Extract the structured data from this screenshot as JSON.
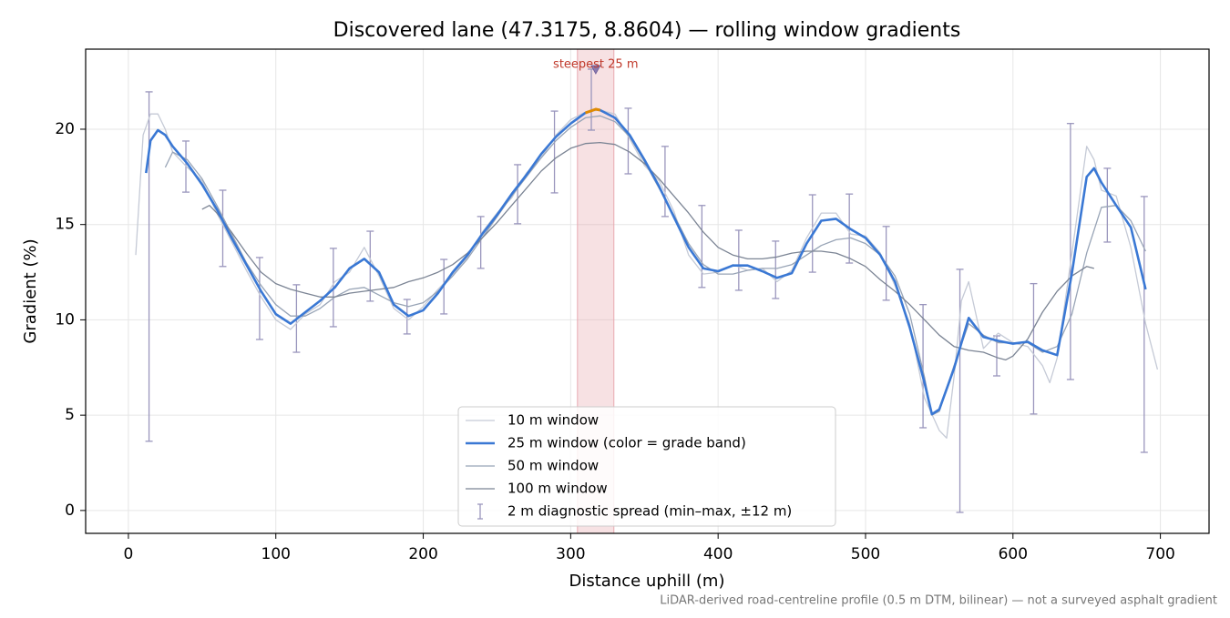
{
  "chart_data": {
    "type": "line",
    "title": "Discovered lane (47.3175, 8.8604) — rolling window gradients",
    "xlabel": "Distance uphill (m)",
    "ylabel": "Gradient (%)",
    "footnote": "LiDAR-derived road-centreline profile (0.5 m DTM, bilinear) — not a surveyed asphalt gradient",
    "xlim": [
      -29,
      733
    ],
    "ylim": [
      -1.2,
      24.2
    ],
    "xticks": [
      0,
      100,
      200,
      300,
      400,
      500,
      600,
      700
    ],
    "yticks": [
      0,
      5,
      10,
      15,
      20
    ],
    "grid": true,
    "legend": "lower center",
    "series": [
      {
        "name": "10 m window",
        "color": "#c5cad6",
        "width": 1.3,
        "x": [
          5,
          10,
          15,
          20,
          25,
          30,
          40,
          50,
          60,
          70,
          80,
          90,
          100,
          110,
          120,
          130,
          140,
          150,
          160,
          170,
          180,
          190,
          200,
          210,
          220,
          230,
          240,
          250,
          260,
          270,
          280,
          290,
          300,
          310,
          320,
          330,
          340,
          350,
          360,
          370,
          380,
          390,
          400,
          410,
          420,
          430,
          440,
          450,
          460,
          470,
          480,
          490,
          500,
          510,
          520,
          530,
          540,
          550,
          555,
          560,
          565,
          570,
          580,
          590,
          600,
          610,
          620,
          625,
          630,
          640,
          650,
          655,
          660,
          670,
          680,
          690,
          698
        ],
        "values": [
          13.4,
          19.7,
          20.8,
          20.8,
          20.0,
          18.8,
          18.0,
          17.3,
          15.6,
          14.1,
          12.6,
          11.2,
          10.0,
          9.5,
          10.3,
          10.8,
          12.0,
          12.5,
          13.8,
          12.3,
          10.6,
          10.0,
          10.7,
          11.6,
          12.4,
          13.3,
          14.6,
          15.6,
          16.4,
          17.7,
          18.5,
          19.7,
          20.5,
          20.9,
          21.0,
          20.8,
          19.5,
          18.1,
          17.3,
          15.7,
          13.4,
          12.4,
          12.5,
          12.9,
          12.6,
          12.7,
          12.0,
          12.6,
          14.3,
          15.6,
          15.6,
          14.5,
          14.4,
          13.5,
          11.8,
          9.8,
          5.9,
          4.2,
          3.8,
          7.0,
          11.0,
          12.0,
          8.5,
          9.3,
          8.8,
          8.6,
          7.6,
          6.7,
          8.0,
          13.5,
          19.1,
          18.4,
          16.8,
          16.5,
          13.8,
          9.8,
          7.4
        ]
      },
      {
        "name": "25 m window (color = grade band)",
        "color": "#3a78d4",
        "width": 2.6,
        "x": [
          12,
          15,
          20,
          25,
          30,
          40,
          50,
          60,
          70,
          80,
          90,
          100,
          110,
          120,
          130,
          140,
          150,
          160,
          170,
          180,
          190,
          200,
          210,
          220,
          230,
          240,
          250,
          260,
          270,
          280,
          290,
          300,
          310,
          317,
          320,
          330,
          340,
          350,
          360,
          370,
          380,
          390,
          400,
          410,
          420,
          430,
          440,
          450,
          460,
          470,
          480,
          490,
          500,
          510,
          520,
          530,
          540,
          545,
          550,
          560,
          570,
          580,
          590,
          600,
          610,
          620,
          630,
          640,
          650,
          655,
          660,
          670,
          680,
          690
        ],
        "values": [
          17.7,
          19.4,
          19.95,
          19.7,
          19.1,
          18.2,
          17.1,
          15.8,
          14.3,
          12.9,
          11.5,
          10.3,
          9.8,
          10.4,
          11.0,
          11.7,
          12.7,
          13.2,
          12.5,
          10.8,
          10.2,
          10.5,
          11.4,
          12.5,
          13.4,
          14.5,
          15.5,
          16.6,
          17.6,
          18.7,
          19.6,
          20.3,
          20.86,
          21.05,
          21.0,
          20.6,
          19.7,
          18.4,
          17.0,
          15.4,
          13.8,
          12.7,
          12.55,
          12.85,
          12.85,
          12.55,
          12.2,
          12.45,
          14.0,
          15.2,
          15.3,
          14.75,
          14.3,
          13.4,
          12.0,
          9.6,
          6.7,
          5.05,
          5.3,
          7.45,
          10.1,
          9.1,
          8.9,
          8.75,
          8.85,
          8.4,
          8.15,
          12.45,
          17.5,
          17.95,
          17.2,
          16.0,
          14.85,
          11.6
        ]
      },
      {
        "name": "50 m window",
        "color": "#98a4b6",
        "width": 1.3,
        "x": [
          25,
          30,
          40,
          50,
          60,
          70,
          80,
          90,
          100,
          110,
          120,
          130,
          140,
          150,
          160,
          170,
          180,
          190,
          200,
          210,
          220,
          230,
          240,
          250,
          260,
          270,
          280,
          290,
          300,
          310,
          320,
          330,
          340,
          350,
          360,
          370,
          380,
          390,
          400,
          410,
          420,
          430,
          440,
          450,
          460,
          470,
          480,
          490,
          500,
          510,
          520,
          530,
          540,
          545,
          550,
          560,
          570,
          580,
          590,
          600,
          610,
          620,
          630,
          640,
          650,
          660,
          670,
          680,
          690
        ],
        "values": [
          18.0,
          18.8,
          18.4,
          17.4,
          16.0,
          14.5,
          13.0,
          11.8,
          10.8,
          10.2,
          10.2,
          10.6,
          11.2,
          11.6,
          11.7,
          11.3,
          10.9,
          10.7,
          10.9,
          11.5,
          12.3,
          13.2,
          14.3,
          15.4,
          16.5,
          17.5,
          18.5,
          19.4,
          20.1,
          20.6,
          20.7,
          20.4,
          19.6,
          18.3,
          16.9,
          15.5,
          14.0,
          12.9,
          12.4,
          12.4,
          12.6,
          12.7,
          12.7,
          12.9,
          13.4,
          13.9,
          14.2,
          14.3,
          14.0,
          13.4,
          12.3,
          10.3,
          7.0,
          5.0,
          5.2,
          7.6,
          9.8,
          9.2,
          8.8,
          8.8,
          8.8,
          8.3,
          8.6,
          10.3,
          13.5,
          15.9,
          16.0,
          15.2,
          13.6
        ]
      },
      {
        "name": "100 m window",
        "color": "#7b8494",
        "width": 1.3,
        "x": [
          50,
          55,
          60,
          70,
          80,
          90,
          100,
          110,
          120,
          130,
          140,
          150,
          160,
          170,
          180,
          190,
          200,
          210,
          220,
          230,
          240,
          250,
          260,
          270,
          280,
          290,
          300,
          310,
          320,
          330,
          340,
          350,
          360,
          370,
          380,
          390,
          400,
          410,
          420,
          430,
          440,
          450,
          460,
          470,
          480,
          490,
          500,
          510,
          520,
          530,
          540,
          550,
          560,
          570,
          580,
          590,
          595,
          600,
          610,
          620,
          630,
          640,
          650,
          655
        ],
        "values": [
          15.8,
          16.0,
          15.6,
          14.6,
          13.5,
          12.5,
          11.9,
          11.6,
          11.4,
          11.2,
          11.2,
          11.4,
          11.5,
          11.6,
          11.7,
          12.0,
          12.2,
          12.5,
          12.9,
          13.5,
          14.3,
          15.1,
          16.0,
          16.9,
          17.8,
          18.5,
          19.0,
          19.25,
          19.3,
          19.2,
          18.8,
          18.2,
          17.4,
          16.5,
          15.6,
          14.6,
          13.8,
          13.4,
          13.2,
          13.2,
          13.3,
          13.5,
          13.6,
          13.6,
          13.5,
          13.2,
          12.8,
          12.1,
          11.5,
          10.8,
          10.0,
          9.2,
          8.6,
          8.4,
          8.3,
          8.0,
          7.9,
          8.1,
          9.0,
          10.4,
          11.5,
          12.3,
          12.8,
          12.7
        ]
      }
    ],
    "errorbars": {
      "name": "2 m diagnostic spread (min–max, ±12 m)",
      "color": "#9a96bd",
      "x": [
        14,
        39,
        64,
        89,
        114,
        139,
        164,
        189,
        214,
        239,
        264,
        289,
        314,
        339,
        364,
        389,
        414,
        439,
        464,
        489,
        514,
        539,
        564,
        589,
        614,
        639,
        664,
        689
      ],
      "low": [
        3.63,
        16.7,
        12.8,
        8.97,
        8.3,
        9.64,
        10.98,
        9.26,
        10.31,
        12.7,
        15.04,
        16.66,
        19.95,
        17.66,
        15.42,
        11.7,
        11.55,
        11.12,
        12.5,
        12.98,
        11.03,
        4.34,
        -0.1,
        7.06,
        5.06,
        6.87,
        14.08,
        3.05
      ],
      "high": [
        21.96,
        19.38,
        16.8,
        13.27,
        11.84,
        13.75,
        14.65,
        11.07,
        13.17,
        15.42,
        18.14,
        20.95,
        23.15,
        21.1,
        19.1,
        16.0,
        14.7,
        14.13,
        16.56,
        16.6,
        14.9,
        10.8,
        12.65,
        9.16,
        11.9,
        20.3,
        17.95,
        16.47
      ]
    },
    "steepest": {
      "label": "steepest 25 m",
      "xrange": [
        304.6,
        329.3
      ],
      "marker_x": 317,
      "marker_y": 23.1,
      "band_color": "#e8a8b0",
      "text_color": "#c0392b",
      "line_color": "#e08a00"
    }
  }
}
